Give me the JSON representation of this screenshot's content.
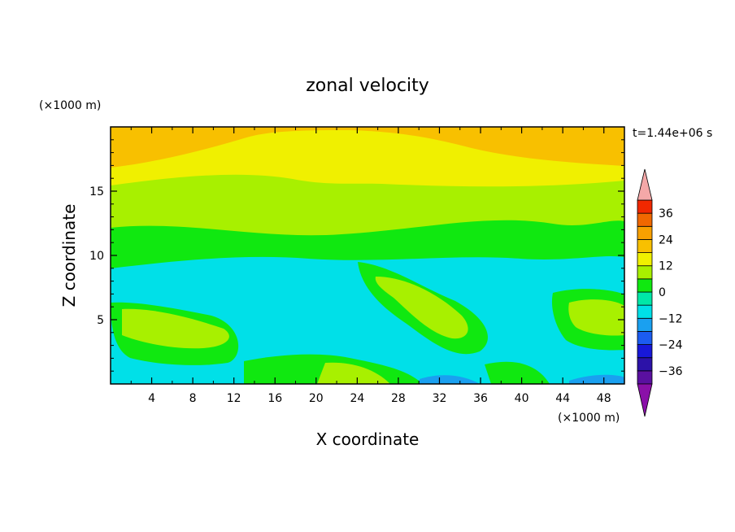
{
  "chart_data": {
    "type": "heatmap",
    "title": "zonal velocity",
    "xlabel": "X coordinate",
    "ylabel": "Z coordinate",
    "x_units": "(×1000 m)",
    "y_units": "(×1000 m)",
    "time_label": "t=1.44e+06 s",
    "xlim": [
      0,
      50
    ],
    "ylim": [
      0,
      20
    ],
    "x_ticks": [
      4,
      8,
      12,
      16,
      20,
      24,
      28,
      32,
      36,
      40,
      44,
      48
    ],
    "x_tick_labels": [
      "4",
      "8",
      "12",
      "16",
      "20",
      "24",
      "28",
      "32",
      "36",
      "40",
      "44",
      "48"
    ],
    "y_ticks": [
      5,
      10,
      15
    ],
    "y_tick_labels": [
      "5",
      "10",
      "15"
    ],
    "colorbar": {
      "levels": [
        -42,
        -36,
        -30,
        -24,
        -18,
        -12,
        -6,
        0,
        6,
        12,
        18,
        24,
        30,
        36,
        42
      ],
      "tick_labels": [
        "36",
        "24",
        "12",
        "0",
        "−12",
        "−24",
        "−36"
      ],
      "tick_values": [
        36,
        24,
        12,
        0,
        -12,
        -24,
        -36
      ],
      "over_color": "#f4a8a8",
      "under_color": "#8a10a8",
      "colors": [
        "#5a10a0",
        "#2c12a8",
        "#1818d8",
        "#1c5cf0",
        "#1aa0f0",
        "#00e0e8",
        "#00e8a8",
        "#10e810",
        "#a8f000",
        "#f0f000",
        "#f8c000",
        "#f8a000",
        "#f06800",
        "#f02800"
      ]
    },
    "bands": [
      {
        "name": "top-orange",
        "value": 22
      },
      {
        "name": "upper-yellow",
        "value": 15
      },
      {
        "name": "yellow-green",
        "value": 9
      },
      {
        "name": "mid-green",
        "value": 3
      },
      {
        "name": "lower-cyan",
        "value": -9
      },
      {
        "name": "tilted-jet",
        "value": 9
      },
      {
        "name": "surface-blue",
        "value": -18
      }
    ]
  }
}
